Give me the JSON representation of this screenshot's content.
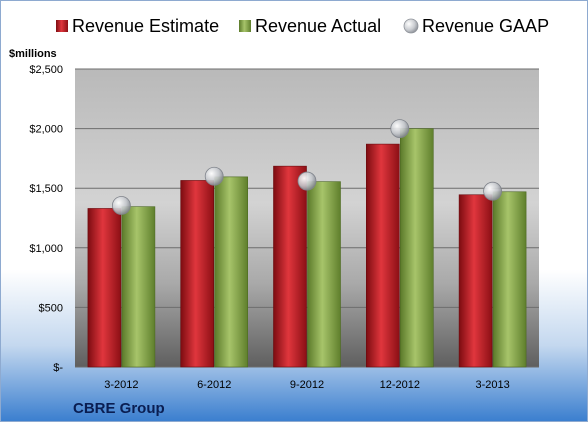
{
  "chart_data": {
    "type": "bar",
    "unit_label": "$millions",
    "categories": [
      "3-2012",
      "6-2012",
      "9-2012",
      "12-2012",
      "3-2013"
    ],
    "series": [
      {
        "name": "Revenue Estimate",
        "kind": "bar",
        "color": "#c0161e",
        "values": [
          1330,
          1565,
          1685,
          1870,
          1445
        ]
      },
      {
        "name": "Revenue Actual",
        "kind": "bar",
        "color": "#8aa94c",
        "values": [
          1345,
          1595,
          1555,
          2000,
          1470
        ]
      },
      {
        "name": "Revenue GAAP",
        "kind": "marker",
        "color": "#b8bcc4",
        "values": [
          1355,
          1600,
          1560,
          2000,
          1475
        ]
      }
    ],
    "y_ticks": [
      0,
      500,
      1000,
      1500,
      2000,
      2500
    ],
    "y_tick_labels": [
      "$-",
      "$500",
      "$1,000",
      "$1,500",
      "$2,000",
      "$2,500"
    ],
    "ylim": [
      0,
      2500
    ],
    "grid": true,
    "legend_position": "top",
    "footer": "CBRE Group"
  }
}
